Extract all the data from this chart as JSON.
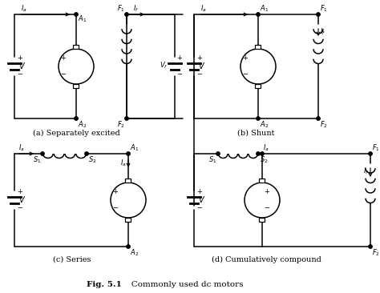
{
  "title_bold": "Fig. 5.1",
  "title_rest": "   Commonly used dc motors",
  "bg_color": "#ffffff",
  "line_color": "#000000",
  "label_a": "(a) Separately excited",
  "label_b": "(b) Shunt",
  "label_c": "(c) Series",
  "label_d": "(d) Cumulatively compound"
}
